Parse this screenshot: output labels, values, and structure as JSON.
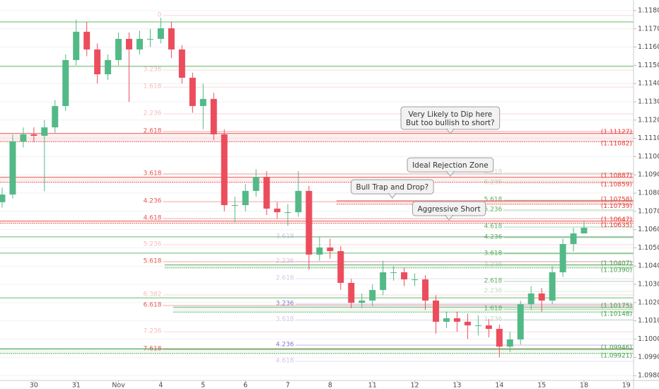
{
  "chart_data": {
    "type": "candlestick",
    "x": [
      -0.75,
      -0.5,
      -0.25,
      0,
      0.25,
      0.5,
      0.75,
      1,
      1.25,
      1.5,
      1.75,
      2,
      2.25,
      2.5,
      2.75,
      3,
      3.25,
      3.5,
      3.75,
      4,
      4.25,
      4.5,
      4.75,
      5,
      5.25,
      5.5,
      5.75,
      6,
      6.25,
      6.5,
      6.75,
      7,
      7.25,
      7.5,
      7.75,
      8,
      8.25,
      8.5,
      8.75,
      9,
      9.25,
      9.5,
      9.75,
      10,
      10.25,
      10.5,
      10.75,
      11,
      11.25,
      11.5,
      11.75,
      12,
      12.25,
      12.5,
      12.75,
      13
    ],
    "open": [
      1.1075,
      1.10792,
      1.11083,
      1.11122,
      1.11114,
      1.1116,
      1.11277,
      1.11529,
      1.11684,
      1.11587,
      1.11451,
      1.11529,
      1.11645,
      1.11587,
      1.11645,
      1.11645,
      1.11703,
      1.11587,
      1.11432,
      1.11277,
      1.11316,
      1.11122,
      1.10734,
      1.10734,
      1.10812,
      1.10889,
      1.10715,
      1.10695,
      1.10695,
      1.10812,
      1.10463,
      1.10502,
      1.10482,
      1.10308,
      1.10199,
      1.10211,
      1.10269,
      1.10366,
      1.10366,
      1.10327,
      1.10327,
      1.10211,
      1.10095,
      1.10114,
      1.10095,
      1.10075,
      1.10075,
      1.10056,
      1.09959,
      1.09998,
      1.10191,
      1.1025,
      1.10211,
      1.10366,
      1.10521,
      1.10579
    ],
    "high": [
      1.1083,
      1.1112,
      1.1116,
      1.1116,
      1.112,
      1.1131,
      1.1156,
      1.1175,
      1.1174,
      1.1162,
      1.1156,
      1.1168,
      1.1168,
      1.1169,
      1.117,
      1.1176,
      1.1174,
      1.1161,
      1.1146,
      1.114,
      1.1135,
      1.1115,
      1.1078,
      1.1085,
      1.1093,
      1.1092,
      1.1075,
      1.1074,
      1.1092,
      1.1084,
      1.1056,
      1.1055,
      1.1051,
      1.1033,
      1.1025,
      1.103,
      1.1043,
      1.104,
      1.1039,
      1.1036,
      1.1035,
      1.1024,
      1.1015,
      1.1015,
      1.1014,
      1.1013,
      1.1011,
      1.1008,
      1.1004,
      1.1021,
      1.1029,
      1.1028,
      1.104,
      1.1055,
      1.1061,
      1.1065
    ],
    "low": [
      1.1072,
      1.1077,
      1.1105,
      1.1108,
      1.1081,
      1.1113,
      1.1125,
      1.115,
      1.1155,
      1.114,
      1.1142,
      1.115,
      1.113,
      1.1156,
      1.116,
      1.1162,
      1.1154,
      1.114,
      1.1124,
      1.1115,
      1.1109,
      1.107,
      1.1064,
      1.107,
      1.1078,
      1.1068,
      1.1066,
      1.1062,
      1.1067,
      1.1038,
      1.1043,
      1.1044,
      1.1027,
      1.1017,
      1.1017,
      1.1018,
      1.1024,
      1.1032,
      1.1029,
      1.1029,
      1.1016,
      1.1003,
      1.1006,
      1.1004,
      1.1,
      1.1002,
      1.1001,
      1.099,
      1.0993,
      1.0997,
      1.1016,
      1.1015,
      1.1019,
      1.1034,
      1.1048,
      1.1058
    ],
    "close": [
      1.10792,
      1.11083,
      1.11122,
      1.11114,
      1.1116,
      1.11277,
      1.11529,
      1.11684,
      1.11587,
      1.11451,
      1.11529,
      1.11645,
      1.11587,
      1.11645,
      1.11645,
      1.11703,
      1.11587,
      1.11432,
      1.11277,
      1.11316,
      1.11122,
      1.10734,
      1.10734,
      1.10812,
      1.10889,
      1.10715,
      1.10695,
      1.10695,
      1.10812,
      1.10463,
      1.10502,
      1.10482,
      1.10308,
      1.10199,
      1.10211,
      1.10269,
      1.10366,
      1.10366,
      1.10327,
      1.10327,
      1.10211,
      1.10095,
      1.10114,
      1.10095,
      1.10075,
      1.10075,
      1.10056,
      1.09959,
      1.09998,
      1.10191,
      1.1025,
      1.10211,
      1.10366,
      1.10521,
      1.10579,
      1.1061
    ],
    "up_color": "#53b987",
    "down_color": "#eb4d5c",
    "xlim": [
      -0.8,
      14.17
    ],
    "xticks": [
      {
        "value": 0,
        "label": "30"
      },
      {
        "value": 1,
        "label": "31"
      },
      {
        "value": 2,
        "label": "Nov"
      },
      {
        "value": 3,
        "label": "4"
      },
      {
        "value": 4,
        "label": "5"
      },
      {
        "value": 5,
        "label": "6"
      },
      {
        "value": 6,
        "label": "7"
      },
      {
        "value": 7,
        "label": "8"
      },
      {
        "value": 8,
        "label": "11"
      },
      {
        "value": 9,
        "label": "12"
      },
      {
        "value": 10,
        "label": "13"
      },
      {
        "value": 11,
        "label": "14"
      },
      {
        "value": 12,
        "label": "15"
      },
      {
        "value": 13,
        "label": "18"
      },
      {
        "value": 14,
        "label": "19"
      }
    ],
    "ylim": [
      1.09773,
      1.11858
    ],
    "yticks": [
      {
        "value": 1.118,
        "label": "1.11800"
      },
      {
        "value": 1.117,
        "label": "1.11700"
      },
      {
        "value": 1.116,
        "label": "1.11600"
      },
      {
        "value": 1.115,
        "label": "1.11500"
      },
      {
        "value": 1.114,
        "label": "1.11400"
      },
      {
        "value": 1.113,
        "label": "1.11300"
      },
      {
        "value": 1.112,
        "label": "1.11200"
      },
      {
        "value": 1.111,
        "label": "1.11100"
      },
      {
        "value": 1.11,
        "label": "1.11000"
      },
      {
        "value": 1.109,
        "label": "1.10900"
      },
      {
        "value": 1.108,
        "label": "1.10800"
      },
      {
        "value": 1.107,
        "label": "1.10700"
      },
      {
        "value": 1.106,
        "label": "1.10600"
      },
      {
        "value": 1.105,
        "label": "1.10500"
      },
      {
        "value": 1.104,
        "label": "1.10400"
      },
      {
        "value": 1.103,
        "label": "1.10300"
      },
      {
        "value": 1.102,
        "label": "1.10200"
      },
      {
        "value": 1.101,
        "label": "1.10100"
      },
      {
        "value": 1.1,
        "label": "1.10000"
      },
      {
        "value": 1.099,
        "label": "1.09900"
      },
      {
        "value": 1.098,
        "label": "1.09800"
      }
    ],
    "hlines": [
      {
        "value": 1.11738,
        "color": "#66bb6a"
      },
      {
        "value": 1.11494,
        "color": "#66bb6a"
      },
      {
        "value": 1.1056,
        "color": "#66bb6a"
      },
      {
        "value": 1.10471,
        "color": "#66bb6a"
      },
      {
        "value": 1.10226,
        "color": "#66bb6a"
      },
      {
        "value": 1.09947,
        "color": "#66bb6a"
      }
    ],
    "zones": [
      {
        "top": {
          "value": 1.11127,
          "label": "(1.11127)"
        },
        "bottom": {
          "value": 1.11082,
          "label": "(1.11082)"
        },
        "color": "#e53935"
      },
      {
        "top": {
          "value": 1.10887,
          "label": "(1.10887)"
        },
        "bottom": {
          "value": 1.10859,
          "label": "(1.10859)"
        },
        "color": "#e53935"
      },
      {
        "top": {
          "value": 1.10758,
          "label": "(1.10758)"
        },
        "bottom": {
          "value": 1.10739,
          "label": "(1.10739)"
        },
        "color": "#e53935",
        "from": 7.15
      },
      {
        "top": {
          "value": 1.10647,
          "label": "(1.10647)"
        },
        "bottom": {
          "value": 1.10635,
          "label": "(1.10635)"
        },
        "color": "#e53935"
      },
      {
        "top": {
          "value": 1.10407,
          "label": "(1.10407)"
        },
        "bottom": {
          "value": 1.1039,
          "label": "(1.10390)"
        },
        "color": "#43a047",
        "from": 3.09
      },
      {
        "top": {
          "value": 1.10175,
          "label": "(1.10175)"
        },
        "bottom": {
          "value": 1.10148,
          "label": "(1.10148)"
        },
        "color": "#43a047",
        "from": 3.29
      },
      {
        "top": {
          "value": 1.09946,
          "label": "(1.09946)"
        },
        "bottom": {
          "value": 1.09921,
          "label": "(1.09921)"
        },
        "color": "#43a047"
      }
    ],
    "fib_sets": [
      {
        "color": "#e53935",
        "from": 3.05,
        "levels": [
          {
            "label": "0",
            "value": 1.11773,
            "strong": false
          },
          {
            "label": "3.236",
            "value": 1.11474,
            "strong": false
          },
          {
            "label": "1.618",
            "value": 1.11381,
            "strong": false
          },
          {
            "label": "2.236",
            "value": 1.11234,
            "strong": false
          },
          {
            "label": "2.618",
            "value": 1.11137,
            "strong": true
          },
          {
            "label": "3.618",
            "value": 1.10905,
            "strong": true
          },
          {
            "label": "4.236",
            "value": 1.10753,
            "strong": true
          },
          {
            "label": "4.618",
            "value": 1.1066,
            "strong": true
          },
          {
            "label": "5.236",
            "value": 1.10517,
            "strong": false
          },
          {
            "label": "5.618",
            "value": 1.10424,
            "strong": true
          },
          {
            "label": "6.382",
            "value": 1.10242,
            "strong": false
          },
          {
            "label": "6.618",
            "value": 1.10184,
            "strong": true
          },
          {
            "label": "7.236",
            "value": 1.1004,
            "strong": false
          },
          {
            "label": "7.618",
            "value": 1.09943,
            "strong": true
          }
        ]
      },
      {
        "color": "#7e57c2",
        "from": 6.18,
        "levels": [
          {
            "label": "3.618",
            "value": 1.1056,
            "strong": false
          },
          {
            "label": "2.236",
            "value": 1.10424,
            "strong": false
          },
          {
            "label": "2.618",
            "value": 1.10331,
            "strong": false
          },
          {
            "label": "3.236",
            "value": 1.10191,
            "strong": true
          },
          {
            "label": "3.618",
            "value": 1.10106,
            "strong": false
          },
          {
            "label": "4.236",
            "value": 1.09967,
            "strong": true
          },
          {
            "label": "4.618",
            "value": 1.09878,
            "strong": false
          }
        ]
      },
      {
        "color": "#43a047",
        "from": 11.1,
        "levels": [
          {
            "label": "6.618",
            "value": 1.10912,
            "strong": false
          },
          {
            "label": "6.236",
            "value": 1.10854,
            "strong": false
          },
          {
            "label": "5.618",
            "value": 1.10761,
            "strong": true
          },
          {
            "label": "5.236",
            "value": 1.10707,
            "strong": true
          },
          {
            "label": "4.618",
            "value": 1.10614,
            "strong": true
          },
          {
            "label": "4.236",
            "value": 1.10556,
            "strong": true
          },
          {
            "label": "3.618",
            "value": 1.10467,
            "strong": true
          },
          {
            "label": "3.236",
            "value": 1.10405,
            "strong": false
          },
          {
            "label": "2.618",
            "value": 1.10316,
            "strong": true
          },
          {
            "label": "2.236",
            "value": 1.10261,
            "strong": false
          },
          {
            "label": "1.618",
            "value": 1.10164,
            "strong": true
          },
          {
            "label": "1.236",
            "value": 1.10106,
            "strong": false
          }
        ]
      }
    ],
    "annotations": [
      {
        "lines": [
          "Very Likely to Dip here",
          "But too bullish to short?"
        ],
        "x": 9.84,
        "value": 1.11114
      },
      {
        "lines": [
          "Ideal Rejection Zone"
        ],
        "x": 9.84,
        "value": 1.10881
      },
      {
        "lines": [
          "Bull Trap and Drop?"
        ],
        "x": 8.47,
        "value": 1.10761
      },
      {
        "lines": [
          "Aggressive Short"
        ],
        "x": 9.81,
        "value": 1.10641
      }
    ]
  }
}
